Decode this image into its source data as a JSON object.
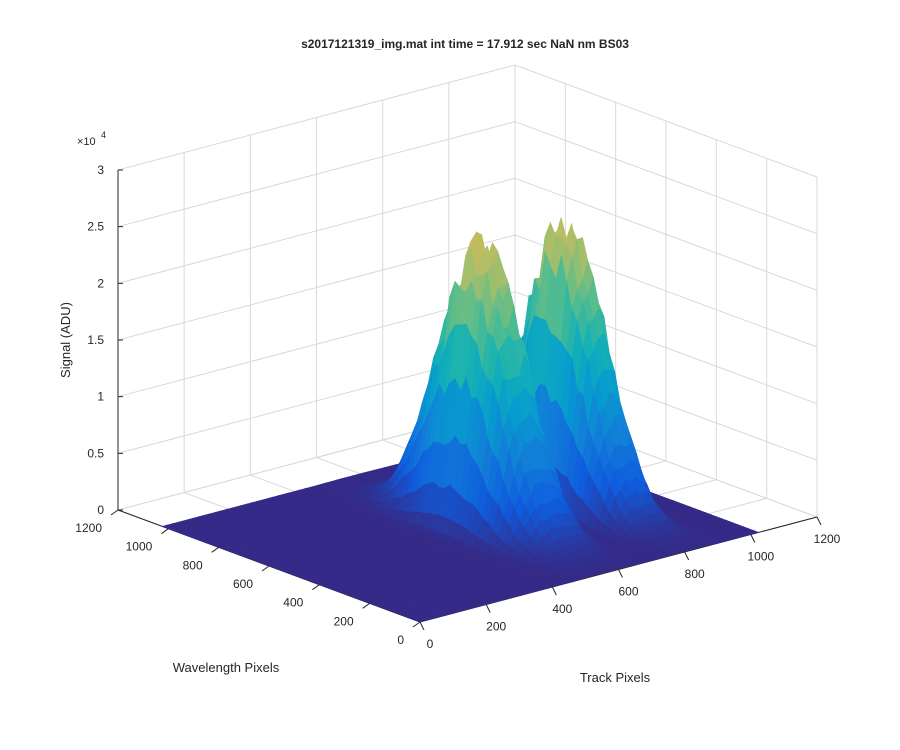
{
  "chart_data": {
    "type": "surface",
    "title": "s2017121319_img.mat int time = 17.912 sec  NaN nm BS03",
    "xlabel": "Track Pixels",
    "ylabel": "Wavelength Pixels",
    "zlabel": "Signal (ADU)",
    "z_exponent": "×10",
    "z_exponent_power": "4",
    "xlim": [
      0,
      1200
    ],
    "ylim": [
      0,
      1200
    ],
    "zlim": [
      0,
      30000
    ],
    "x_ticks": [
      0,
      200,
      400,
      600,
      800,
      1000,
      1200
    ],
    "y_ticks": [
      0,
      200,
      400,
      600,
      800,
      1000,
      1200
    ],
    "z_ticks": [
      0,
      0.5,
      1,
      1.5,
      2,
      2.5,
      3
    ],
    "z_tick_labels": [
      "0",
      "0.5",
      "1",
      "1.5",
      "2",
      "2.5",
      "3"
    ],
    "x_tick_labels": [
      "0",
      "200",
      "400",
      "600",
      "800",
      "1000",
      "1200"
    ],
    "y_tick_labels": [
      "0",
      "200",
      "400",
      "600",
      "800",
      "1000",
      "1200"
    ],
    "grid": true,
    "colormap": "parula",
    "data_extent": {
      "x": [
        0,
        1024
      ],
      "y": [
        0,
        1024
      ]
    },
    "peaks": [
      {
        "track_center": 570,
        "track_width": 85,
        "wavelength_center": 500,
        "wavelength_width": 230,
        "peak_signal": 25000
      },
      {
        "track_center": 820,
        "track_width": 70,
        "wavelength_center": 500,
        "wavelength_width": 230,
        "peak_signal": 25000
      }
    ],
    "colors": {
      "floor": "#352a87",
      "axes": "#262626",
      "grid": "#d9d9d9"
    }
  }
}
